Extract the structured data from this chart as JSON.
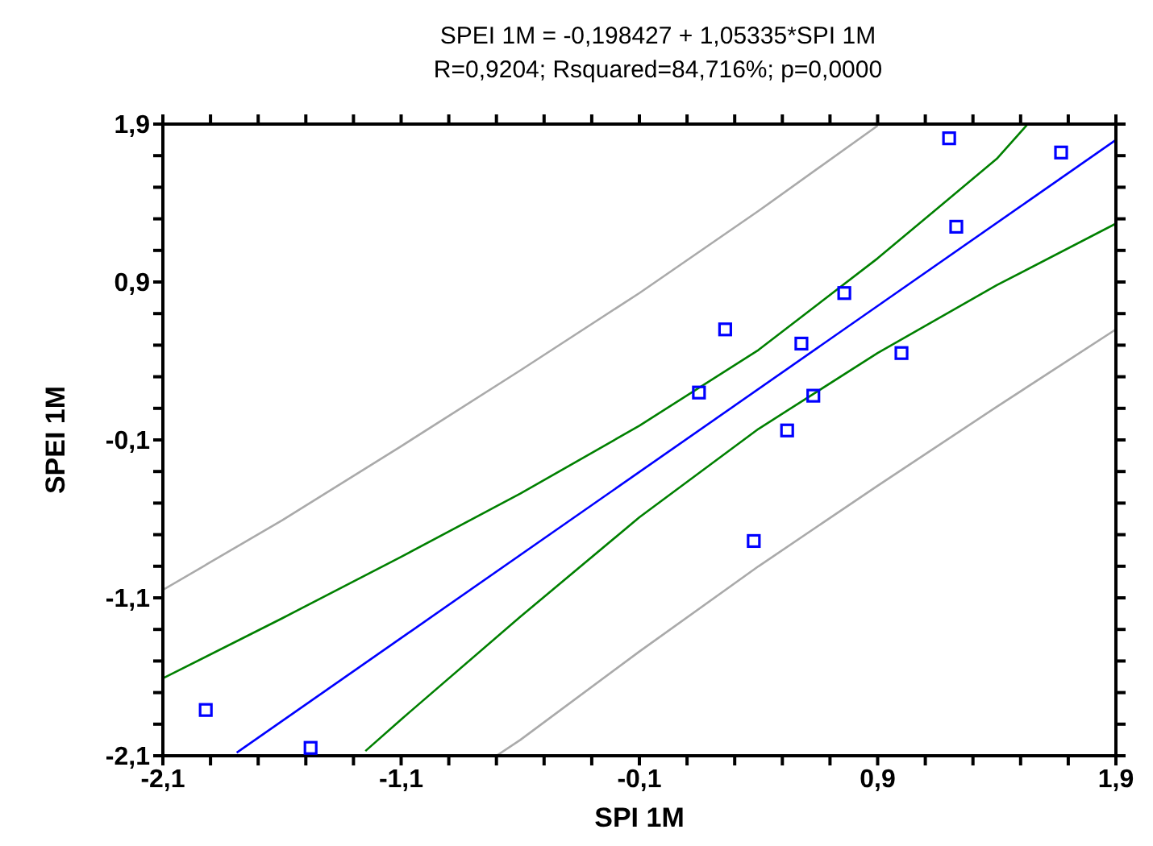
{
  "chart_data": {
    "type": "scatter",
    "title": "SPEI 1M = -0,198427 + 1,05335*SPI 1M",
    "subtitle": "R=0,9204; Rsquared=84,716%; p=0,0000",
    "xlabel": "SPI 1M",
    "ylabel": "SPEI 1M",
    "xlim": [
      -2.1,
      1.9
    ],
    "ylim": [
      -2.1,
      1.9
    ],
    "xticks": [
      {
        "value": -2.1,
        "label": "-2,1"
      },
      {
        "value": -1.9,
        "label": null
      },
      {
        "value": -1.7,
        "label": null
      },
      {
        "value": -1.5,
        "label": null
      },
      {
        "value": -1.3,
        "label": null
      },
      {
        "value": -1.1,
        "label": "-1,1"
      },
      {
        "value": -0.9,
        "label": null
      },
      {
        "value": -0.7,
        "label": null
      },
      {
        "value": -0.5,
        "label": null
      },
      {
        "value": -0.3,
        "label": null
      },
      {
        "value": -0.1,
        "label": "-0,1"
      },
      {
        "value": 0.1,
        "label": null
      },
      {
        "value": 0.3,
        "label": null
      },
      {
        "value": 0.5,
        "label": null
      },
      {
        "value": 0.7,
        "label": null
      },
      {
        "value": 0.9,
        "label": "0,9"
      },
      {
        "value": 1.1,
        "label": null
      },
      {
        "value": 1.3,
        "label": null
      },
      {
        "value": 1.5,
        "label": null
      },
      {
        "value": 1.7,
        "label": null
      },
      {
        "value": 1.9,
        "label": "1,9"
      }
    ],
    "yticks": [
      {
        "value": -2.1,
        "label": "-2,1"
      },
      {
        "value": -1.9,
        "label": null
      },
      {
        "value": -1.7,
        "label": null
      },
      {
        "value": -1.5,
        "label": null
      },
      {
        "value": -1.3,
        "label": null
      },
      {
        "value": -1.1,
        "label": "-1,1"
      },
      {
        "value": -0.9,
        "label": null
      },
      {
        "value": -0.7,
        "label": null
      },
      {
        "value": -0.5,
        "label": null
      },
      {
        "value": -0.3,
        "label": null
      },
      {
        "value": -0.1,
        "label": "-0,1"
      },
      {
        "value": 0.1,
        "label": null
      },
      {
        "value": 0.3,
        "label": null
      },
      {
        "value": 0.5,
        "label": null
      },
      {
        "value": 0.7,
        "label": null
      },
      {
        "value": 0.9,
        "label": "0,9"
      },
      {
        "value": 1.1,
        "label": null
      },
      {
        "value": 1.3,
        "label": null
      },
      {
        "value": 1.5,
        "label": null
      },
      {
        "value": 1.7,
        "label": null
      },
      {
        "value": 1.9,
        "label": "1,9"
      }
    ],
    "grid": false,
    "series": [
      {
        "marker": "square",
        "color": "#0000ff",
        "x": [
          1.2,
          1.67,
          1.23,
          0.76,
          0.26,
          0.58,
          1.0,
          0.15,
          0.63,
          0.52,
          0.38,
          -1.92,
          -1.48
        ],
        "values": [
          1.81,
          1.72,
          1.25,
          0.83,
          0.6,
          0.51,
          0.45,
          0.2,
          0.18,
          -0.04,
          -0.74,
          -1.81,
          -2.05
        ]
      },
      {
        "type": "line",
        "color": "#0000ff",
        "x": [
          -1.79,
          1.9
        ],
        "values": [
          -2.08,
          1.8
        ]
      },
      {
        "type": "line",
        "color": "#008000",
        "x": [
          -2.1,
          -1.6,
          -1.1,
          -0.6,
          -0.1,
          0.4,
          0.9,
          1.4,
          1.53
        ],
        "values": [
          -1.61,
          -1.23,
          -0.84,
          -0.44,
          -0.01,
          0.47,
          1.05,
          1.68,
          1.9
        ]
      },
      {
        "type": "line",
        "color": "#008000",
        "x": [
          -1.25,
          -1.1,
          -0.6,
          -0.1,
          0.4,
          0.9,
          1.4,
          1.9
        ],
        "values": [
          -2.07,
          -1.87,
          -1.22,
          -0.59,
          -0.03,
          0.45,
          0.88,
          1.27
        ]
      },
      {
        "type": "line",
        "color": "#aaaaaa",
        "x": [
          -2.1,
          -1.6,
          -1.1,
          -0.6,
          -0.1,
          0.4,
          0.9
        ],
        "values": [
          -1.05,
          -0.61,
          -0.14,
          0.34,
          0.83,
          1.35,
          1.89
        ]
      },
      {
        "type": "line",
        "color": "#aaaaaa",
        "x": [
          -0.7,
          -0.6,
          -0.1,
          0.4,
          0.9,
          1.4,
          1.9
        ],
        "values": [
          -2.1,
          -2.0,
          -1.44,
          -0.9,
          -0.39,
          0.11,
          0.6
        ]
      }
    ]
  }
}
